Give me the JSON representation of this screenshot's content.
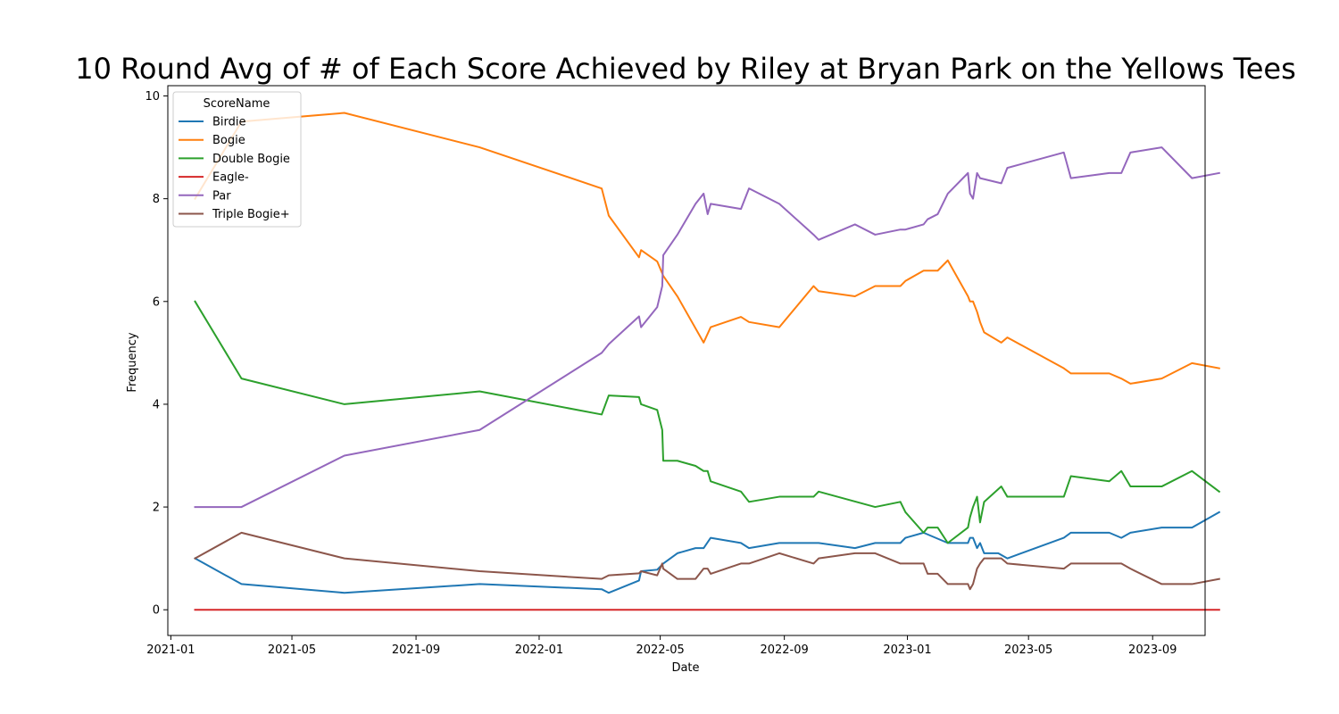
{
  "chart_data": {
    "type": "line",
    "title": "10 Round Avg of # of Each Score Achieved by Riley at Bryan Park on the Yellows Tees",
    "xlabel": "Date",
    "ylabel": "Frequency",
    "x_range": [
      "2020-12-29",
      "2023-10-23"
    ],
    "ylim": [
      -0.5,
      10.2
    ],
    "x_ticks": [
      "2021-01",
      "2021-05",
      "2021-09",
      "2022-01",
      "2022-05",
      "2022-09",
      "2023-01",
      "2023-05",
      "2023-09"
    ],
    "y_ticks": [
      0,
      2,
      4,
      6,
      8,
      10
    ],
    "grid": false,
    "legend": {
      "title": "ScoreName",
      "placement": "top-left"
    },
    "series": [
      {
        "name": "Birdie",
        "color": "#1f77b4",
        "points": [
          [
            "2021-01-25",
            1.0
          ],
          [
            "2021-03-12",
            0.5
          ],
          [
            "2021-06-22",
            0.33
          ],
          [
            "2021-11-03",
            0.5
          ],
          [
            "2022-03-04",
            0.4
          ],
          [
            "2022-03-11",
            0.33
          ],
          [
            "2022-04-10",
            0.57
          ],
          [
            "2022-04-12",
            0.75
          ],
          [
            "2022-04-28",
            0.78
          ],
          [
            "2022-05-04",
            0.9
          ],
          [
            "2022-05-18",
            1.1
          ],
          [
            "2022-06-05",
            1.2
          ],
          [
            "2022-06-13",
            1.2
          ],
          [
            "2022-06-20",
            1.4
          ],
          [
            "2022-07-20",
            1.3
          ],
          [
            "2022-07-28",
            1.2
          ],
          [
            "2022-08-27",
            1.3
          ],
          [
            "2022-10-05",
            1.3
          ],
          [
            "2022-11-10",
            1.2
          ],
          [
            "2022-11-30",
            1.3
          ],
          [
            "2022-12-25",
            1.3
          ],
          [
            "2022-12-30",
            1.4
          ],
          [
            "2023-01-17",
            1.5
          ],
          [
            "2023-02-10",
            1.3
          ],
          [
            "2023-03-02",
            1.3
          ],
          [
            "2023-03-04",
            1.4
          ],
          [
            "2023-03-07",
            1.4
          ],
          [
            "2023-03-11",
            1.2
          ],
          [
            "2023-03-14",
            1.3
          ],
          [
            "2023-03-18",
            1.1
          ],
          [
            "2023-04-01",
            1.1
          ],
          [
            "2023-04-10",
            1.0
          ],
          [
            "2023-06-05",
            1.4
          ],
          [
            "2023-06-12",
            1.5
          ],
          [
            "2023-07-20",
            1.5
          ],
          [
            "2023-08-01",
            1.4
          ],
          [
            "2023-08-10",
            1.5
          ],
          [
            "2023-09-10",
            1.6
          ],
          [
            "2023-10-10",
            1.6
          ],
          [
            "2023-11-06",
            1.9
          ]
        ]
      },
      {
        "name": "Bogie",
        "color": "#ff7f0e",
        "points": [
          [
            "2021-01-25",
            8.0
          ],
          [
            "2021-03-12",
            9.5
          ],
          [
            "2021-06-22",
            9.67
          ],
          [
            "2021-11-03",
            9.0
          ],
          [
            "2022-03-04",
            8.2
          ],
          [
            "2022-03-11",
            7.67
          ],
          [
            "2022-04-10",
            6.86
          ],
          [
            "2022-04-12",
            7.0
          ],
          [
            "2022-04-28",
            6.78
          ],
          [
            "2022-05-04",
            6.5
          ],
          [
            "2022-05-18",
            6.1
          ],
          [
            "2022-06-13",
            5.2
          ],
          [
            "2022-06-20",
            5.5
          ],
          [
            "2022-07-20",
            5.7
          ],
          [
            "2022-07-28",
            5.6
          ],
          [
            "2022-08-27",
            5.5
          ],
          [
            "2022-09-30",
            6.3
          ],
          [
            "2022-10-05",
            6.2
          ],
          [
            "2022-11-10",
            6.1
          ],
          [
            "2022-11-30",
            6.3
          ],
          [
            "2022-12-25",
            6.3
          ],
          [
            "2022-12-30",
            6.4
          ],
          [
            "2023-01-17",
            6.6
          ],
          [
            "2023-01-31",
            6.6
          ],
          [
            "2023-02-10",
            6.8
          ],
          [
            "2023-03-02",
            6.1
          ],
          [
            "2023-03-04",
            6.0
          ],
          [
            "2023-03-07",
            6.0
          ],
          [
            "2023-03-11",
            5.8
          ],
          [
            "2023-03-14",
            5.6
          ],
          [
            "2023-03-18",
            5.4
          ],
          [
            "2023-04-04",
            5.2
          ],
          [
            "2023-04-10",
            5.3
          ],
          [
            "2023-06-05",
            4.7
          ],
          [
            "2023-06-12",
            4.6
          ],
          [
            "2023-07-20",
            4.6
          ],
          [
            "2023-08-01",
            4.5
          ],
          [
            "2023-08-10",
            4.4
          ],
          [
            "2023-09-10",
            4.5
          ],
          [
            "2023-10-10",
            4.8
          ],
          [
            "2023-11-06",
            4.7
          ]
        ]
      },
      {
        "name": "Double Bogie",
        "color": "#2ca02c",
        "points": [
          [
            "2021-01-25",
            6.0
          ],
          [
            "2021-03-12",
            4.5
          ],
          [
            "2021-06-22",
            4.0
          ],
          [
            "2021-11-03",
            4.25
          ],
          [
            "2022-03-04",
            3.8
          ],
          [
            "2022-03-11",
            4.17
          ],
          [
            "2022-04-10",
            4.14
          ],
          [
            "2022-04-12",
            4.0
          ],
          [
            "2022-04-28",
            3.89
          ],
          [
            "2022-05-03",
            3.5
          ],
          [
            "2022-05-04",
            2.9
          ],
          [
            "2022-05-18",
            2.9
          ],
          [
            "2022-06-05",
            2.8
          ],
          [
            "2022-06-13",
            2.7
          ],
          [
            "2022-06-17",
            2.7
          ],
          [
            "2022-06-20",
            2.5
          ],
          [
            "2022-07-20",
            2.3
          ],
          [
            "2022-07-28",
            2.1
          ],
          [
            "2022-08-27",
            2.2
          ],
          [
            "2022-09-30",
            2.2
          ],
          [
            "2022-10-05",
            2.3
          ],
          [
            "2022-11-30",
            2.0
          ],
          [
            "2022-12-25",
            2.1
          ],
          [
            "2022-12-30",
            1.9
          ],
          [
            "2023-01-17",
            1.5
          ],
          [
            "2023-01-21",
            1.6
          ],
          [
            "2023-01-31",
            1.6
          ],
          [
            "2023-02-10",
            1.3
          ],
          [
            "2023-03-02",
            1.6
          ],
          [
            "2023-03-04",
            1.8
          ],
          [
            "2023-03-07",
            2.0
          ],
          [
            "2023-03-11",
            2.2
          ],
          [
            "2023-03-14",
            1.7
          ],
          [
            "2023-03-18",
            2.1
          ],
          [
            "2023-04-04",
            2.4
          ],
          [
            "2023-04-10",
            2.2
          ],
          [
            "2023-06-05",
            2.2
          ],
          [
            "2023-06-12",
            2.6
          ],
          [
            "2023-07-20",
            2.5
          ],
          [
            "2023-08-01",
            2.7
          ],
          [
            "2023-08-10",
            2.4
          ],
          [
            "2023-09-10",
            2.4
          ],
          [
            "2023-10-10",
            2.7
          ],
          [
            "2023-11-06",
            2.3
          ]
        ]
      },
      {
        "name": "Eagle-",
        "color": "#d62728",
        "points": [
          [
            "2021-01-25",
            0.0
          ],
          [
            "2023-11-06",
            0.0
          ]
        ]
      },
      {
        "name": "Par",
        "color": "#9467bd",
        "points": [
          [
            "2021-01-25",
            2.0
          ],
          [
            "2021-03-12",
            2.0
          ],
          [
            "2021-06-22",
            3.0
          ],
          [
            "2021-11-03",
            3.5
          ],
          [
            "2022-03-04",
            5.0
          ],
          [
            "2022-03-11",
            5.17
          ],
          [
            "2022-04-10",
            5.71
          ],
          [
            "2022-04-12",
            5.5
          ],
          [
            "2022-04-28",
            5.89
          ],
          [
            "2022-05-03",
            6.3
          ],
          [
            "2022-05-04",
            6.9
          ],
          [
            "2022-05-18",
            7.3
          ],
          [
            "2022-06-05",
            7.9
          ],
          [
            "2022-06-13",
            8.1
          ],
          [
            "2022-06-17",
            7.7
          ],
          [
            "2022-06-20",
            7.9
          ],
          [
            "2022-07-20",
            7.8
          ],
          [
            "2022-07-28",
            8.2
          ],
          [
            "2022-08-27",
            7.9
          ],
          [
            "2022-09-30",
            7.3
          ],
          [
            "2022-10-05",
            7.2
          ],
          [
            "2022-11-10",
            7.5
          ],
          [
            "2022-11-30",
            7.3
          ],
          [
            "2022-12-25",
            7.4
          ],
          [
            "2022-12-30",
            7.4
          ],
          [
            "2023-01-17",
            7.5
          ],
          [
            "2023-01-21",
            7.6
          ],
          [
            "2023-01-31",
            7.7
          ],
          [
            "2023-02-10",
            8.1
          ],
          [
            "2023-03-02",
            8.5
          ],
          [
            "2023-03-04",
            8.1
          ],
          [
            "2023-03-07",
            8.0
          ],
          [
            "2023-03-11",
            8.5
          ],
          [
            "2023-03-14",
            8.4
          ],
          [
            "2023-04-04",
            8.3
          ],
          [
            "2023-04-10",
            8.6
          ],
          [
            "2023-06-05",
            8.9
          ],
          [
            "2023-06-12",
            8.4
          ],
          [
            "2023-07-20",
            8.5
          ],
          [
            "2023-08-01",
            8.5
          ],
          [
            "2023-08-10",
            8.9
          ],
          [
            "2023-09-10",
            9.0
          ],
          [
            "2023-10-10",
            8.4
          ],
          [
            "2023-11-06",
            8.5
          ]
        ]
      },
      {
        "name": "Triple Bogie+",
        "color": "#8c564b",
        "points": [
          [
            "2021-01-25",
            1.0
          ],
          [
            "2021-03-12",
            1.5
          ],
          [
            "2021-06-22",
            1.0
          ],
          [
            "2021-11-03",
            0.75
          ],
          [
            "2022-03-04",
            0.6
          ],
          [
            "2022-03-11",
            0.67
          ],
          [
            "2022-04-10",
            0.71
          ],
          [
            "2022-04-12",
            0.75
          ],
          [
            "2022-04-28",
            0.67
          ],
          [
            "2022-05-03",
            0.9
          ],
          [
            "2022-05-04",
            0.8
          ],
          [
            "2022-05-18",
            0.6
          ],
          [
            "2022-06-05",
            0.6
          ],
          [
            "2022-06-13",
            0.8
          ],
          [
            "2022-06-17",
            0.8
          ],
          [
            "2022-06-20",
            0.7
          ],
          [
            "2022-07-20",
            0.9
          ],
          [
            "2022-07-28",
            0.9
          ],
          [
            "2022-08-27",
            1.1
          ],
          [
            "2022-09-30",
            0.9
          ],
          [
            "2022-10-05",
            1.0
          ],
          [
            "2022-11-10",
            1.1
          ],
          [
            "2022-11-30",
            1.1
          ],
          [
            "2022-12-25",
            0.9
          ],
          [
            "2023-01-17",
            0.9
          ],
          [
            "2023-01-21",
            0.7
          ],
          [
            "2023-01-31",
            0.7
          ],
          [
            "2023-02-10",
            0.5
          ],
          [
            "2023-03-02",
            0.5
          ],
          [
            "2023-03-04",
            0.4
          ],
          [
            "2023-03-07",
            0.5
          ],
          [
            "2023-03-11",
            0.8
          ],
          [
            "2023-03-14",
            0.9
          ],
          [
            "2023-03-18",
            1.0
          ],
          [
            "2023-04-04",
            1.0
          ],
          [
            "2023-04-10",
            0.9
          ],
          [
            "2023-06-05",
            0.8
          ],
          [
            "2023-06-12",
            0.9
          ],
          [
            "2023-07-20",
            0.9
          ],
          [
            "2023-08-01",
            0.9
          ],
          [
            "2023-08-10",
            0.8
          ],
          [
            "2023-09-10",
            0.5
          ],
          [
            "2023-10-10",
            0.5
          ],
          [
            "2023-11-06",
            0.6
          ]
        ]
      }
    ]
  }
}
